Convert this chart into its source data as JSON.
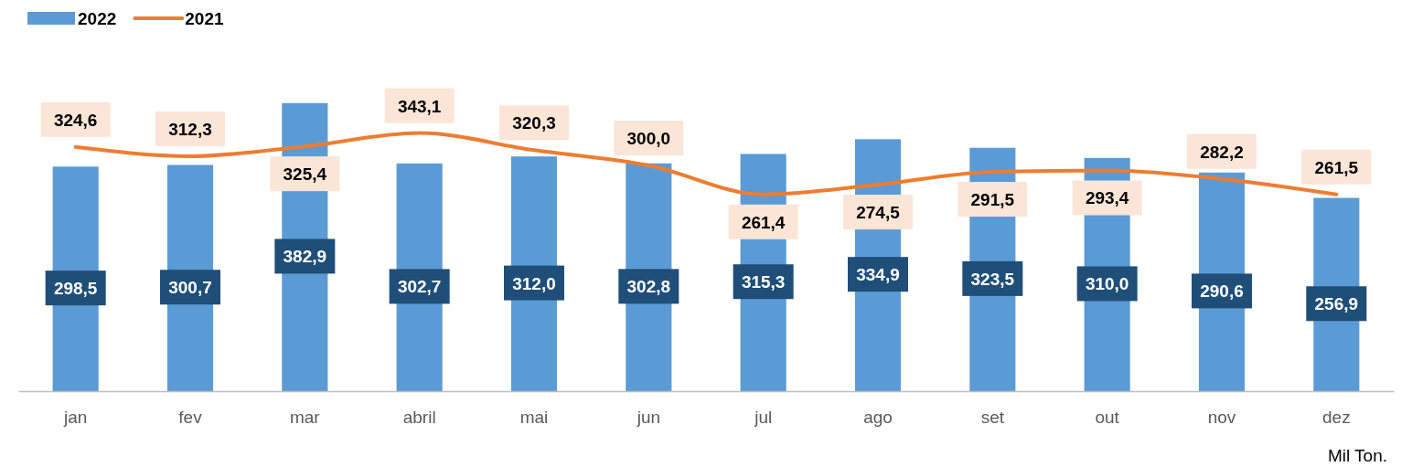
{
  "chart_data": {
    "type": "bar",
    "categories": [
      "jan",
      "fev",
      "mar",
      "abril",
      "mai",
      "jun",
      "jul",
      "ago",
      "set",
      "out",
      "nov",
      "dez"
    ],
    "series": [
      {
        "name": "2022",
        "color": "#5b9bd5",
        "values": [
          298.5,
          300.7,
          382.9,
          302.7,
          312.0,
          302.8,
          315.3,
          334.9,
          323.5,
          310.0,
          290.6,
          256.9
        ],
        "value_labels": [
          "298,5",
          "300,7",
          "382,9",
          "302,7",
          "312,0",
          "302,8",
          "315,3",
          "334,9",
          "323,5",
          "310,0",
          "290,6",
          "256,9"
        ]
      },
      {
        "name": "2021",
        "type": "line",
        "color": "#ed7d31",
        "values": [
          324.6,
          312.3,
          325.4,
          343.1,
          320.3,
          300.0,
          261.4,
          274.5,
          291.5,
          293.4,
          282.2,
          261.5
        ],
        "value_labels": [
          "324,6",
          "312,3",
          "325,4",
          "343,1",
          "320,3",
          "300,0",
          "261,4",
          "274,5",
          "291,5",
          "293,4",
          "282,2",
          "261,5"
        ]
      }
    ],
    "legend": "top left",
    "grid": false,
    "marker": "none",
    "line_style": "solid",
    "annotations": [
      "Mil Ton."
    ]
  }
}
